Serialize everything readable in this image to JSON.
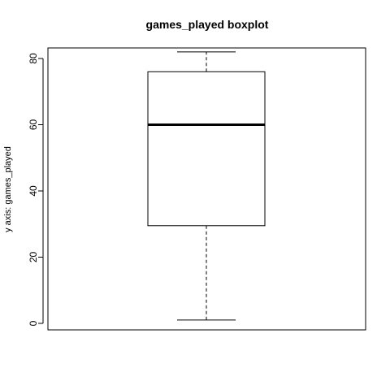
{
  "chart_data": {
    "type": "boxplot",
    "title": "games_played boxplot",
    "xlabel": "",
    "ylabel": "y axis: games_played",
    "ylim": [
      -2,
      85
    ],
    "yticks": [
      0,
      20,
      40,
      60,
      80
    ],
    "grid": false,
    "series": [
      {
        "values": {
          "min": 1,
          "q1": 29.5,
          "median": 60,
          "q3": 76,
          "max": 82
        }
      }
    ]
  }
}
